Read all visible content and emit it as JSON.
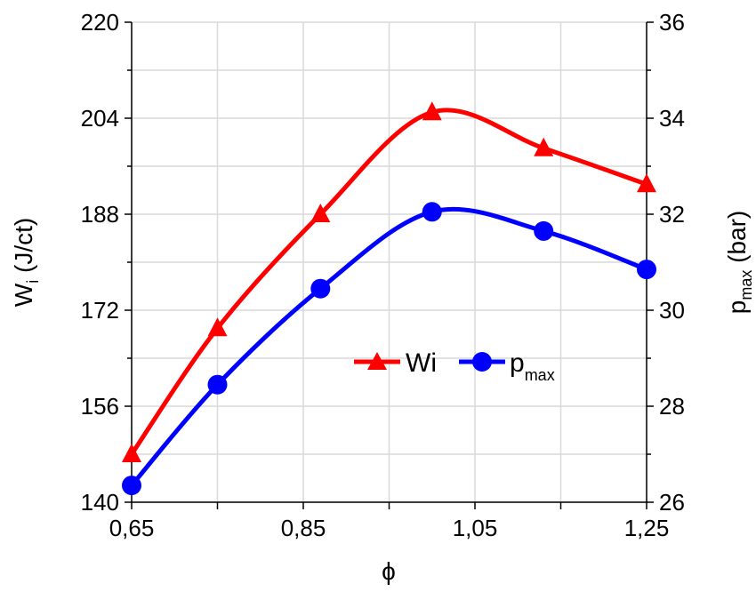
{
  "chart_data": {
    "type": "line",
    "xlabel": "ϕ",
    "ylabel": {
      "main": "W",
      "sub": "i",
      "unit": " (J/ct)"
    },
    "y2label": {
      "main": "p",
      "sub": "max",
      "unit": " (bar)"
    },
    "xlim": [
      0.65,
      1.25
    ],
    "ylim": [
      140,
      220
    ],
    "y2lim": [
      26,
      36
    ],
    "x_ticks": [
      "0,65",
      "0,85",
      "1,05",
      "1,25"
    ],
    "y_ticks": [
      "140",
      "156",
      "172",
      "188",
      "204",
      "220"
    ],
    "y2_ticks": [
      "26",
      "28",
      "30",
      "32",
      "34",
      "36"
    ],
    "grid": true,
    "legend_placement": "center-right",
    "series": [
      {
        "name": "Wi",
        "legend_main": "Wi",
        "legend_sub": "",
        "axis": "left",
        "color": "#ff0000",
        "marker": "triangle",
        "x": [
          0.65,
          0.75,
          0.87,
          1.0,
          1.13,
          1.25
        ],
        "y": [
          148,
          169,
          188,
          205,
          199,
          193
        ]
      },
      {
        "name": "pmax",
        "legend_main": "p",
        "legend_sub": "max",
        "axis": "right",
        "color": "#0000ff",
        "marker": "circle",
        "x": [
          0.65,
          0.75,
          0.87,
          1.0,
          1.13,
          1.25
        ],
        "y": [
          26.35,
          28.45,
          30.45,
          32.05,
          31.65,
          30.85
        ]
      }
    ]
  }
}
